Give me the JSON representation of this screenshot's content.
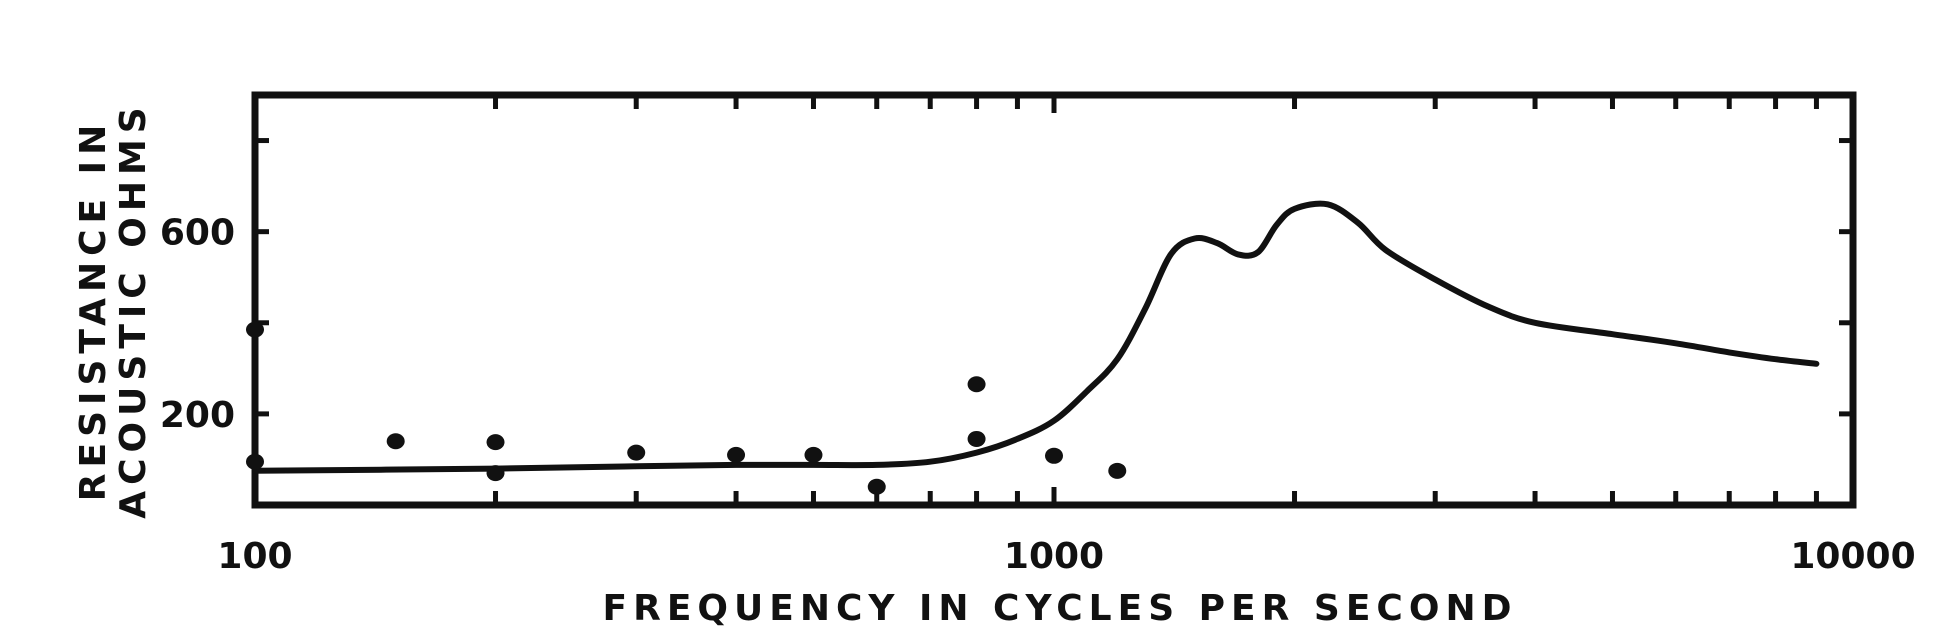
{
  "chart_data": {
    "type": "line",
    "title": "",
    "xlabel": "FREQUENCY IN CYCLES PER SECOND",
    "ylabel_lines": [
      "RESISTANCE IN",
      "ACOUSTIC OHMS"
    ],
    "xscale": "log",
    "xlim": [
      100,
      10000
    ],
    "ylim": [
      0,
      900
    ],
    "grid": false,
    "legend": "none",
    "x_tick_labels": [
      {
        "value": 100,
        "label": "100"
      },
      {
        "value": 1000,
        "label": "1000"
      },
      {
        "value": 10000,
        "label": "10000"
      }
    ],
    "y_tick_labels": [
      {
        "value": 200,
        "label": "200"
      },
      {
        "value": 600,
        "label": "600"
      }
    ],
    "y_ticks": [
      0,
      200,
      400,
      600,
      800
    ],
    "series": [
      {
        "kind": "line",
        "color": "#111111",
        "x": [
          100,
          200,
          300,
          400,
          500,
          600,
          700,
          800,
          900,
          1000,
          1100,
          1200,
          1300,
          1400,
          1500,
          1600,
          1700,
          1800,
          1900,
          2000,
          2200,
          2400,
          2600,
          3000,
          3500,
          4000,
          5000,
          6000,
          7000,
          8000,
          9000
        ],
        "y": [
          75,
          80,
          85,
          88,
          88,
          88,
          95,
          115,
          145,
          185,
          250,
          320,
          430,
          550,
          585,
          575,
          550,
          555,
          615,
          650,
          660,
          620,
          560,
          495,
          435,
          400,
          375,
          355,
          335,
          320,
          310
        ]
      },
      {
        "kind": "scatter",
        "color": "#111111",
        "x": [
          100,
          100,
          150,
          200,
          200,
          300,
          400,
          500,
          600,
          800,
          800,
          1000,
          1200
        ],
        "y": [
          385,
          95,
          140,
          138,
          70,
          115,
          110,
          110,
          40,
          265,
          145,
          108,
          75
        ]
      }
    ]
  }
}
